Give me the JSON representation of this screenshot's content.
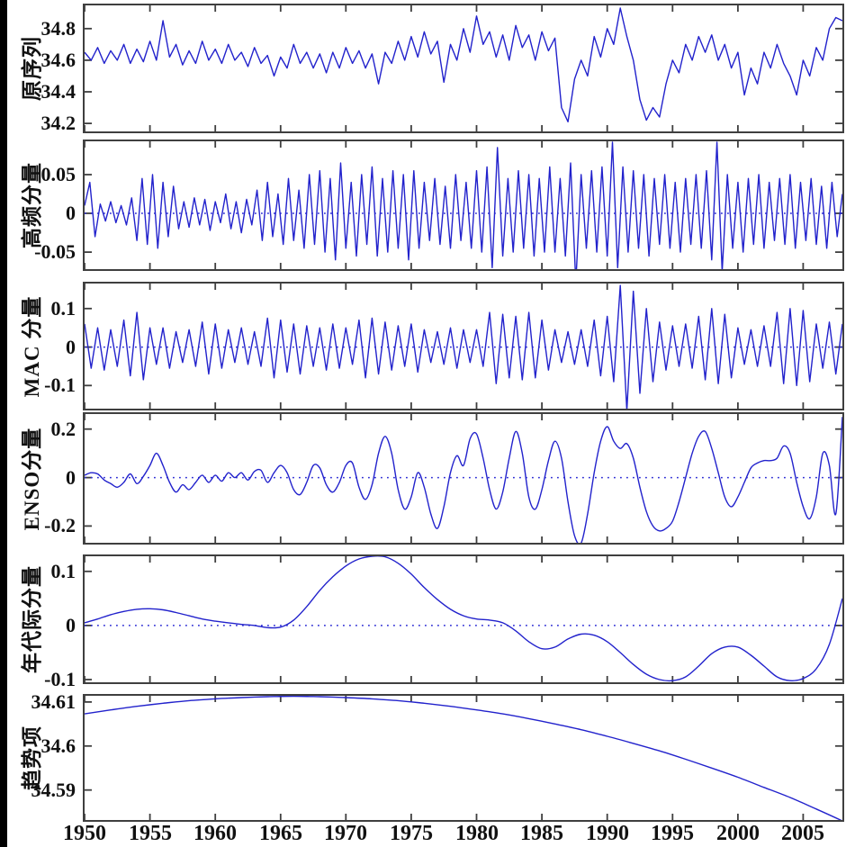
{
  "figure": {
    "description": "Six stacked time-series decomposition panels, 1950-2008",
    "line_color": "#2222cc",
    "zero_line_color": "#2a2ad4",
    "frame_color": "#3f3f3f"
  },
  "chart_data": {
    "type": "line",
    "x_range": [
      1950,
      2008
    ],
    "x_ticks": [
      1950,
      1955,
      1960,
      1965,
      1970,
      1975,
      1980,
      1985,
      1990,
      1995,
      2000,
      2005
    ],
    "x_tick_labels": [
      "1950",
      "1955",
      "1960",
      "1965",
      "1970",
      "1975",
      "1980",
      "1985",
      "1990",
      "1995",
      "2000",
      "2005"
    ],
    "panels": [
      {
        "label": "原序列",
        "ylim": [
          34.149,
          34.947
        ],
        "yticks": [
          34.2,
          34.4,
          34.6,
          34.8
        ],
        "ytick_labels": [
          "34.2",
          "34.4",
          "34.6",
          "34.8"
        ],
        "zero_line": false,
        "smooth": false,
        "x0": 1950,
        "dx": 0.5,
        "values": [
          34.65,
          34.6,
          34.68,
          34.58,
          34.66,
          34.6,
          34.7,
          34.58,
          34.67,
          34.59,
          34.72,
          34.6,
          34.85,
          34.62,
          34.7,
          34.57,
          34.66,
          34.58,
          34.72,
          34.6,
          34.67,
          34.58,
          34.7,
          34.6,
          34.65,
          34.56,
          34.68,
          34.58,
          34.63,
          34.5,
          34.62,
          34.55,
          34.7,
          34.58,
          34.65,
          34.55,
          34.64,
          34.52,
          34.65,
          34.55,
          34.68,
          34.58,
          34.66,
          34.55,
          34.64,
          34.45,
          34.65,
          34.58,
          34.72,
          34.6,
          34.75,
          34.62,
          34.78,
          34.64,
          34.72,
          34.46,
          34.7,
          34.6,
          34.8,
          34.65,
          34.88,
          34.7,
          34.78,
          34.62,
          34.76,
          34.6,
          34.82,
          34.68,
          34.76,
          34.6,
          34.78,
          34.66,
          34.74,
          34.3,
          34.21,
          34.48,
          34.6,
          34.5,
          34.75,
          34.62,
          34.8,
          34.7,
          34.93,
          34.75,
          34.6,
          34.35,
          34.22,
          34.3,
          34.24,
          34.45,
          34.6,
          34.52,
          34.7,
          34.6,
          34.75,
          34.65,
          34.76,
          34.6,
          34.7,
          34.55,
          34.65,
          34.38,
          34.55,
          34.45,
          34.65,
          34.55,
          34.7,
          34.58,
          34.5,
          34.38,
          34.6,
          34.5,
          34.68,
          34.6,
          34.8,
          34.87,
          34.85
        ]
      },
      {
        "label": "高频分量",
        "ylim": [
          -0.072,
          0.093
        ],
        "yticks": [
          -0.05,
          0,
          0.05
        ],
        "ytick_labels": [
          "-0.05",
          "0",
          "0.05"
        ],
        "zero_line": true,
        "smooth": false,
        "x0": 1950,
        "dx": 0.4,
        "values": [
          0.01,
          0.04,
          -0.03,
          0.012,
          -0.01,
          0.015,
          -0.012,
          0.01,
          -0.015,
          0.02,
          -0.035,
          0.045,
          -0.04,
          0.05,
          -0.045,
          0.04,
          -0.03,
          0.035,
          -0.02,
          0.015,
          -0.018,
          0.02,
          -0.015,
          0.018,
          -0.022,
          0.015,
          -0.012,
          0.025,
          -0.02,
          0.015,
          -0.025,
          0.018,
          -0.015,
          0.03,
          -0.035,
          0.04,
          -0.03,
          0.025,
          -0.04,
          0.045,
          -0.035,
          0.03,
          -0.045,
          0.05,
          -0.04,
          0.055,
          -0.05,
          0.045,
          -0.06,
          0.065,
          -0.045,
          0.04,
          -0.055,
          0.05,
          -0.04,
          0.06,
          -0.055,
          0.045,
          -0.05,
          0.055,
          -0.045,
          0.05,
          -0.06,
          0.055,
          -0.045,
          0.04,
          -0.035,
          0.045,
          -0.04,
          0.035,
          -0.045,
          0.05,
          -0.035,
          0.04,
          -0.045,
          0.055,
          -0.05,
          0.06,
          -0.07,
          0.085,
          -0.055,
          0.045,
          -0.05,
          0.055,
          -0.045,
          0.05,
          -0.055,
          0.045,
          -0.05,
          0.06,
          -0.05,
          0.045,
          -0.055,
          0.065,
          -0.09,
          0.05,
          -0.045,
          0.055,
          -0.05,
          0.06,
          -0.055,
          0.092,
          -0.07,
          0.06,
          -0.05,
          0.055,
          -0.045,
          0.05,
          -0.055,
          0.045,
          -0.04,
          0.05,
          -0.045,
          0.04,
          -0.05,
          0.045,
          -0.04,
          0.05,
          -0.045,
          0.055,
          -0.06,
          0.092,
          -0.075,
          0.05,
          -0.045,
          0.04,
          -0.05,
          0.045,
          -0.04,
          0.05,
          -0.045,
          0.04,
          -0.035,
          0.045,
          -0.04,
          0.05,
          -0.045,
          0.04,
          -0.035,
          0.045,
          -0.04,
          0.035,
          -0.045,
          0.04,
          -0.03,
          0.025
        ]
      },
      {
        "label": "MAC 分量",
        "ylim": [
          -0.16,
          0.165
        ],
        "yticks": [
          -0.1,
          0,
          0.1
        ],
        "ytick_labels": [
          "-0.1",
          "0",
          "0.1"
        ],
        "zero_line": true,
        "smooth": false,
        "x0": 1950,
        "dx": 0.5,
        "values": [
          0.06,
          -0.055,
          0.05,
          -0.06,
          0.045,
          -0.05,
          0.07,
          -0.075,
          0.09,
          -0.085,
          0.05,
          -0.045,
          0.05,
          -0.055,
          0.04,
          -0.04,
          0.045,
          -0.05,
          0.065,
          -0.07,
          0.06,
          -0.055,
          0.045,
          -0.04,
          0.05,
          -0.045,
          0.04,
          -0.05,
          0.075,
          -0.08,
          0.07,
          -0.065,
          0.06,
          -0.07,
          0.055,
          -0.05,
          0.05,
          -0.06,
          0.06,
          -0.055,
          0.05,
          -0.045,
          0.07,
          -0.08,
          0.075,
          -0.07,
          0.065,
          -0.06,
          0.055,
          -0.05,
          0.06,
          -0.065,
          0.045,
          -0.04,
          0.04,
          -0.045,
          0.05,
          -0.055,
          0.045,
          -0.04,
          0.045,
          -0.05,
          0.09,
          -0.095,
          0.085,
          -0.08,
          0.08,
          -0.085,
          0.09,
          -0.08,
          0.07,
          -0.06,
          0.045,
          -0.04,
          0.04,
          -0.045,
          0.045,
          -0.05,
          0.07,
          -0.075,
          0.08,
          -0.09,
          0.16,
          -0.165,
          0.145,
          -0.12,
          0.1,
          -0.09,
          0.065,
          -0.06,
          0.055,
          -0.05,
          0.06,
          -0.055,
          0.08,
          -0.085,
          0.1,
          -0.095,
          0.085,
          -0.08,
          0.05,
          -0.045,
          0.045,
          -0.05,
          0.055,
          -0.05,
          0.09,
          -0.095,
          0.1,
          -0.1,
          0.095,
          -0.09,
          0.06,
          -0.055,
          0.065,
          -0.07,
          0.06
        ]
      },
      {
        "label": "ENSO分量",
        "ylim": [
          -0.269,
          0.262
        ],
        "yticks": [
          -0.2,
          0,
          0.2
        ],
        "ytick_labels": [
          "-0.2",
          "0",
          "0.2"
        ],
        "zero_line": true,
        "smooth": true,
        "x0": 1950,
        "dx": 0.5,
        "values": [
          0.01,
          0.02,
          0.015,
          -0.01,
          -0.025,
          -0.04,
          -0.02,
          0.015,
          -0.025,
          0.005,
          0.05,
          0.1,
          0.05,
          -0.02,
          -0.06,
          -0.03,
          -0.05,
          -0.02,
          0.01,
          -0.02,
          0.01,
          -0.015,
          0.02,
          0.0,
          0.02,
          -0.01,
          0.025,
          0.03,
          -0.02,
          0.02,
          0.05,
          0.02,
          -0.05,
          -0.07,
          -0.02,
          0.05,
          0.04,
          -0.03,
          -0.06,
          -0.02,
          0.05,
          0.06,
          -0.04,
          -0.09,
          -0.03,
          0.1,
          0.17,
          0.1,
          -0.05,
          -0.13,
          -0.08,
          0.02,
          -0.04,
          -0.15,
          -0.21,
          -0.12,
          0.02,
          0.09,
          0.05,
          0.16,
          0.18,
          0.08,
          -0.05,
          -0.13,
          -0.06,
          0.08,
          0.19,
          0.1,
          -0.08,
          -0.13,
          -0.05,
          0.07,
          0.15,
          0.08,
          -0.1,
          -0.24,
          -0.27,
          -0.15,
          0.02,
          0.15,
          0.21,
          0.15,
          0.12,
          0.14,
          0.08,
          -0.04,
          -0.14,
          -0.2,
          -0.22,
          -0.21,
          -0.18,
          -0.1,
          0.0,
          0.1,
          0.17,
          0.19,
          0.12,
          0.02,
          -0.08,
          -0.12,
          -0.08,
          -0.02,
          0.04,
          0.06,
          0.07,
          0.07,
          0.08,
          0.13,
          0.1,
          -0.02,
          -0.12,
          -0.17,
          -0.08,
          0.1,
          0.05,
          -0.15,
          0.25
        ]
      },
      {
        "label": "年代际分量",
        "ylim": [
          -0.105,
          0.128
        ],
        "yticks": [
          -0.1,
          0,
          0.1
        ],
        "ytick_labels": [
          "-0.1",
          "0",
          "0.1"
        ],
        "zero_line": true,
        "smooth": true,
        "x0": 1950,
        "dx": 1,
        "values": [
          0.005,
          0.012,
          0.02,
          0.026,
          0.03,
          0.031,
          0.029,
          0.024,
          0.018,
          0.012,
          0.008,
          0.005,
          0.002,
          0.0,
          -0.004,
          -0.003,
          0.01,
          0.035,
          0.065,
          0.09,
          0.11,
          0.123,
          0.128,
          0.127,
          0.115,
          0.095,
          0.07,
          0.048,
          0.03,
          0.018,
          0.012,
          0.01,
          0.005,
          -0.01,
          -0.03,
          -0.043,
          -0.04,
          -0.025,
          -0.016,
          -0.018,
          -0.03,
          -0.05,
          -0.072,
          -0.09,
          -0.1,
          -0.102,
          -0.095,
          -0.075,
          -0.052,
          -0.04,
          -0.04,
          -0.055,
          -0.075,
          -0.095,
          -0.102,
          -0.098,
          -0.08,
          -0.035,
          0.05
        ]
      },
      {
        "label": "趋势项",
        "ylim": [
          34.5832,
          34.6114
        ],
        "yticks": [
          34.59,
          34.6,
          34.61
        ],
        "ytick_labels": [
          "34.59",
          "34.6",
          "34.61"
        ],
        "zero_line": false,
        "smooth": true,
        "x0": 1950,
        "dx": 2,
        "values": [
          34.6073,
          34.6082,
          34.609,
          34.6097,
          34.6103,
          34.6107,
          34.611,
          34.6112,
          34.6113,
          34.6112,
          34.611,
          34.6107,
          34.6103,
          34.6097,
          34.609,
          34.6082,
          34.6073,
          34.6062,
          34.605,
          34.6037,
          34.6022,
          34.6006,
          34.5989,
          34.597,
          34.595,
          34.5929,
          34.5906,
          34.5883,
          34.5857,
          34.583
        ]
      }
    ]
  }
}
